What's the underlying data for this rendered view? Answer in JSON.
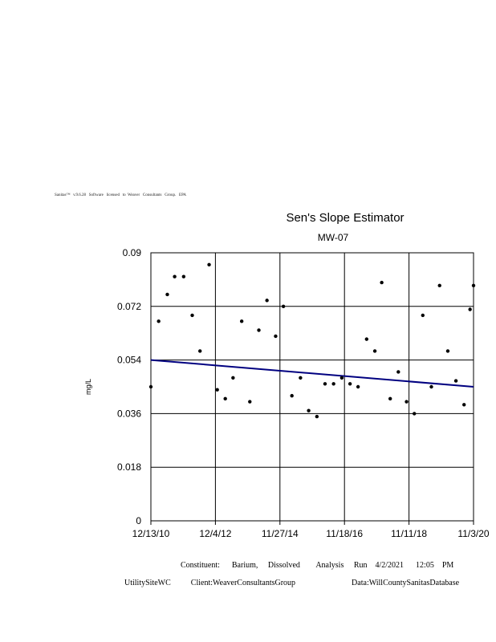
{
  "header": {
    "software_notice": "Sanitas™   v.9.6.28   Software   licensed   to  Weaver   Consultants   Group.   EPA"
  },
  "chart_data": {
    "type": "scatter",
    "title": "Sen's Slope Estimator",
    "subtitle": "MW-07",
    "xlabel": "",
    "ylabel": "mg/L",
    "x_tick_labels": [
      "12/13/10",
      "12/4/12",
      "11/27/14",
      "11/18/16",
      "11/11/18",
      "11/3/20"
    ],
    "y_tick_labels": [
      "0",
      "0.018",
      "0.036",
      "0.054",
      "0.072",
      "0.09"
    ],
    "ylim": [
      0,
      0.09
    ],
    "xlim": [
      "2010-12-13",
      "2020-11-03"
    ],
    "grid": true,
    "series": [
      {
        "points": [
          {
            "x": "2010-12-13",
            "y": 0.045
          },
          {
            "x": "2011-03-10",
            "y": 0.067
          },
          {
            "x": "2011-06-15",
            "y": 0.076
          },
          {
            "x": "2011-09-05",
            "y": 0.082
          },
          {
            "x": "2011-12-15",
            "y": 0.082
          },
          {
            "x": "2012-03-20",
            "y": 0.069
          },
          {
            "x": "2012-06-15",
            "y": 0.057
          },
          {
            "x": "2012-09-25",
            "y": 0.086
          },
          {
            "x": "2012-12-25",
            "y": 0.044
          },
          {
            "x": "2013-03-25",
            "y": 0.041
          },
          {
            "x": "2013-06-20",
            "y": 0.048
          },
          {
            "x": "2013-09-25",
            "y": 0.067
          },
          {
            "x": "2013-12-25",
            "y": 0.04
          },
          {
            "x": "2014-04-05",
            "y": 0.064
          },
          {
            "x": "2014-07-05",
            "y": 0.074
          },
          {
            "x": "2014-10-10",
            "y": 0.062
          },
          {
            "x": "2015-01-05",
            "y": 0.072
          },
          {
            "x": "2015-04-10",
            "y": 0.042
          },
          {
            "x": "2015-07-15",
            "y": 0.048
          },
          {
            "x": "2015-10-15",
            "y": 0.037
          },
          {
            "x": "2016-01-15",
            "y": 0.035
          },
          {
            "x": "2016-04-15",
            "y": 0.046
          },
          {
            "x": "2016-07-20",
            "y": 0.046
          },
          {
            "x": "2016-10-20",
            "y": 0.048
          },
          {
            "x": "2017-01-20",
            "y": 0.046
          },
          {
            "x": "2017-04-20",
            "y": 0.045
          },
          {
            "x": "2017-07-25",
            "y": 0.061
          },
          {
            "x": "2017-10-25",
            "y": 0.057
          },
          {
            "x": "2018-01-10",
            "y": 0.08
          },
          {
            "x": "2018-04-15",
            "y": 0.041
          },
          {
            "x": "2018-07-15",
            "y": 0.05
          },
          {
            "x": "2018-10-15",
            "y": 0.04
          },
          {
            "x": "2019-01-10",
            "y": 0.036
          },
          {
            "x": "2019-04-15",
            "y": 0.069
          },
          {
            "x": "2019-07-20",
            "y": 0.045
          },
          {
            "x": "2019-10-20",
            "y": 0.079
          },
          {
            "x": "2020-01-20",
            "y": 0.057
          },
          {
            "x": "2020-04-20",
            "y": 0.047
          },
          {
            "x": "2020-07-20",
            "y": 0.039
          },
          {
            "x": "2020-09-25",
            "y": 0.071
          },
          {
            "x": "2020-11-03",
            "y": 0.079
          }
        ]
      }
    ],
    "trend_line": {
      "x": [
        "2010-12-13",
        "2020-11-03"
      ],
      "y": [
        0.054,
        0.045
      ],
      "color": "#000080"
    }
  },
  "footer": {
    "constituent": "Constituent:      Barium,     Dissolved        Analysis     Run    4/2/2021      12:05    PM",
    "site_info": "UtilitySiteWC          Client:WeaverConsultantsGroup                            Data:WillCountySanitasDatabase"
  }
}
